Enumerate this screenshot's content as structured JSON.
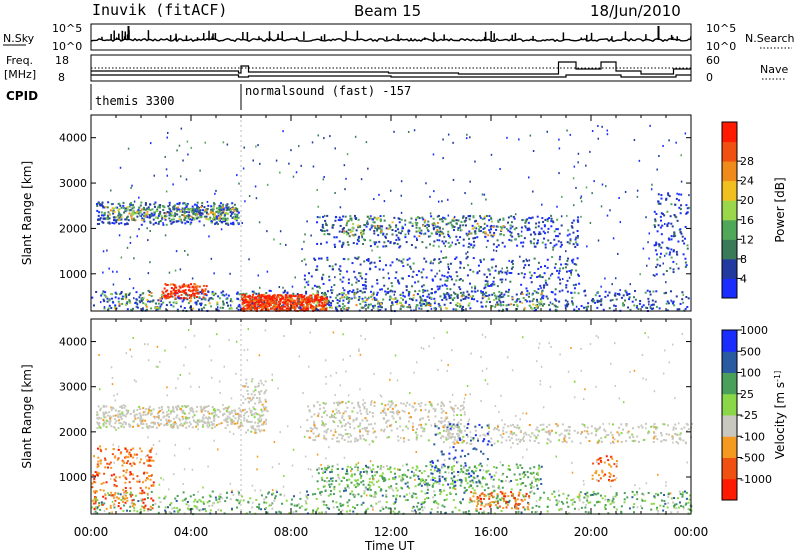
{
  "header": {
    "station": "Inuvik (fitACF)",
    "beam": "Beam 15",
    "date": "18/Jun/2010"
  },
  "panels": {
    "nsky": {
      "label": "N.Sky",
      "ticks": [
        "10^5",
        "10^0"
      ],
      "right_label": "N.Search"
    },
    "freq": {
      "label_line1": "Freq.",
      "label_line2": "[MHz]",
      "ticks": [
        "18",
        "8"
      ],
      "right_ticks": [
        "60",
        "0"
      ],
      "right_label": "Nave"
    },
    "cpid": {
      "label": "CPID",
      "segments": [
        "themis 3300",
        "normalsound (fast) -157"
      ]
    }
  },
  "colors": {
    "power": [
      "#1a2dff",
      "#22399f",
      "#3a7a58",
      "#4fa85a",
      "#9ad74a",
      "#f0c020",
      "#f08a1a",
      "#f05010",
      "#ff1a00"
    ],
    "velocity": [
      "#ff1a00",
      "#f05010",
      "#f59a20",
      "#c8c8c0",
      "#8ad848",
      "#4aa05a",
      "#2a5aa0",
      "#1a2dff"
    ]
  },
  "chart_data": [
    {
      "type": "heatmap",
      "name": "power",
      "title": "",
      "xlabel": "",
      "ylabel": "Slant Range [km]",
      "x_ticks": [
        "00:00",
        "04:00",
        "08:00",
        "12:00",
        "16:00",
        "20:00",
        "00:00"
      ],
      "y_ticks": [
        "1000",
        "2000",
        "3000",
        "4000"
      ],
      "ylim": [
        180,
        4500
      ],
      "colorbar_label": "Power [dB]",
      "colorbar_ticks": [
        "4",
        "8",
        "12",
        "16",
        "20",
        "24",
        "28"
      ]
    },
    {
      "type": "heatmap",
      "name": "velocity",
      "title": "",
      "xlabel": "Time UT",
      "ylabel": "Slant Range [km]",
      "x_ticks": [
        "00:00",
        "04:00",
        "08:00",
        "12:00",
        "16:00",
        "20:00",
        "00:00"
      ],
      "y_ticks": [
        "1000",
        "2000",
        "3000",
        "4000"
      ],
      "ylim": [
        180,
        4500
      ],
      "colorbar_label": "Velocity [m s^-1]",
      "colorbar_ticks": [
        "1000",
        "500",
        "100",
        "25",
        "-25",
        "-100",
        "-500",
        "-1000"
      ]
    }
  ]
}
